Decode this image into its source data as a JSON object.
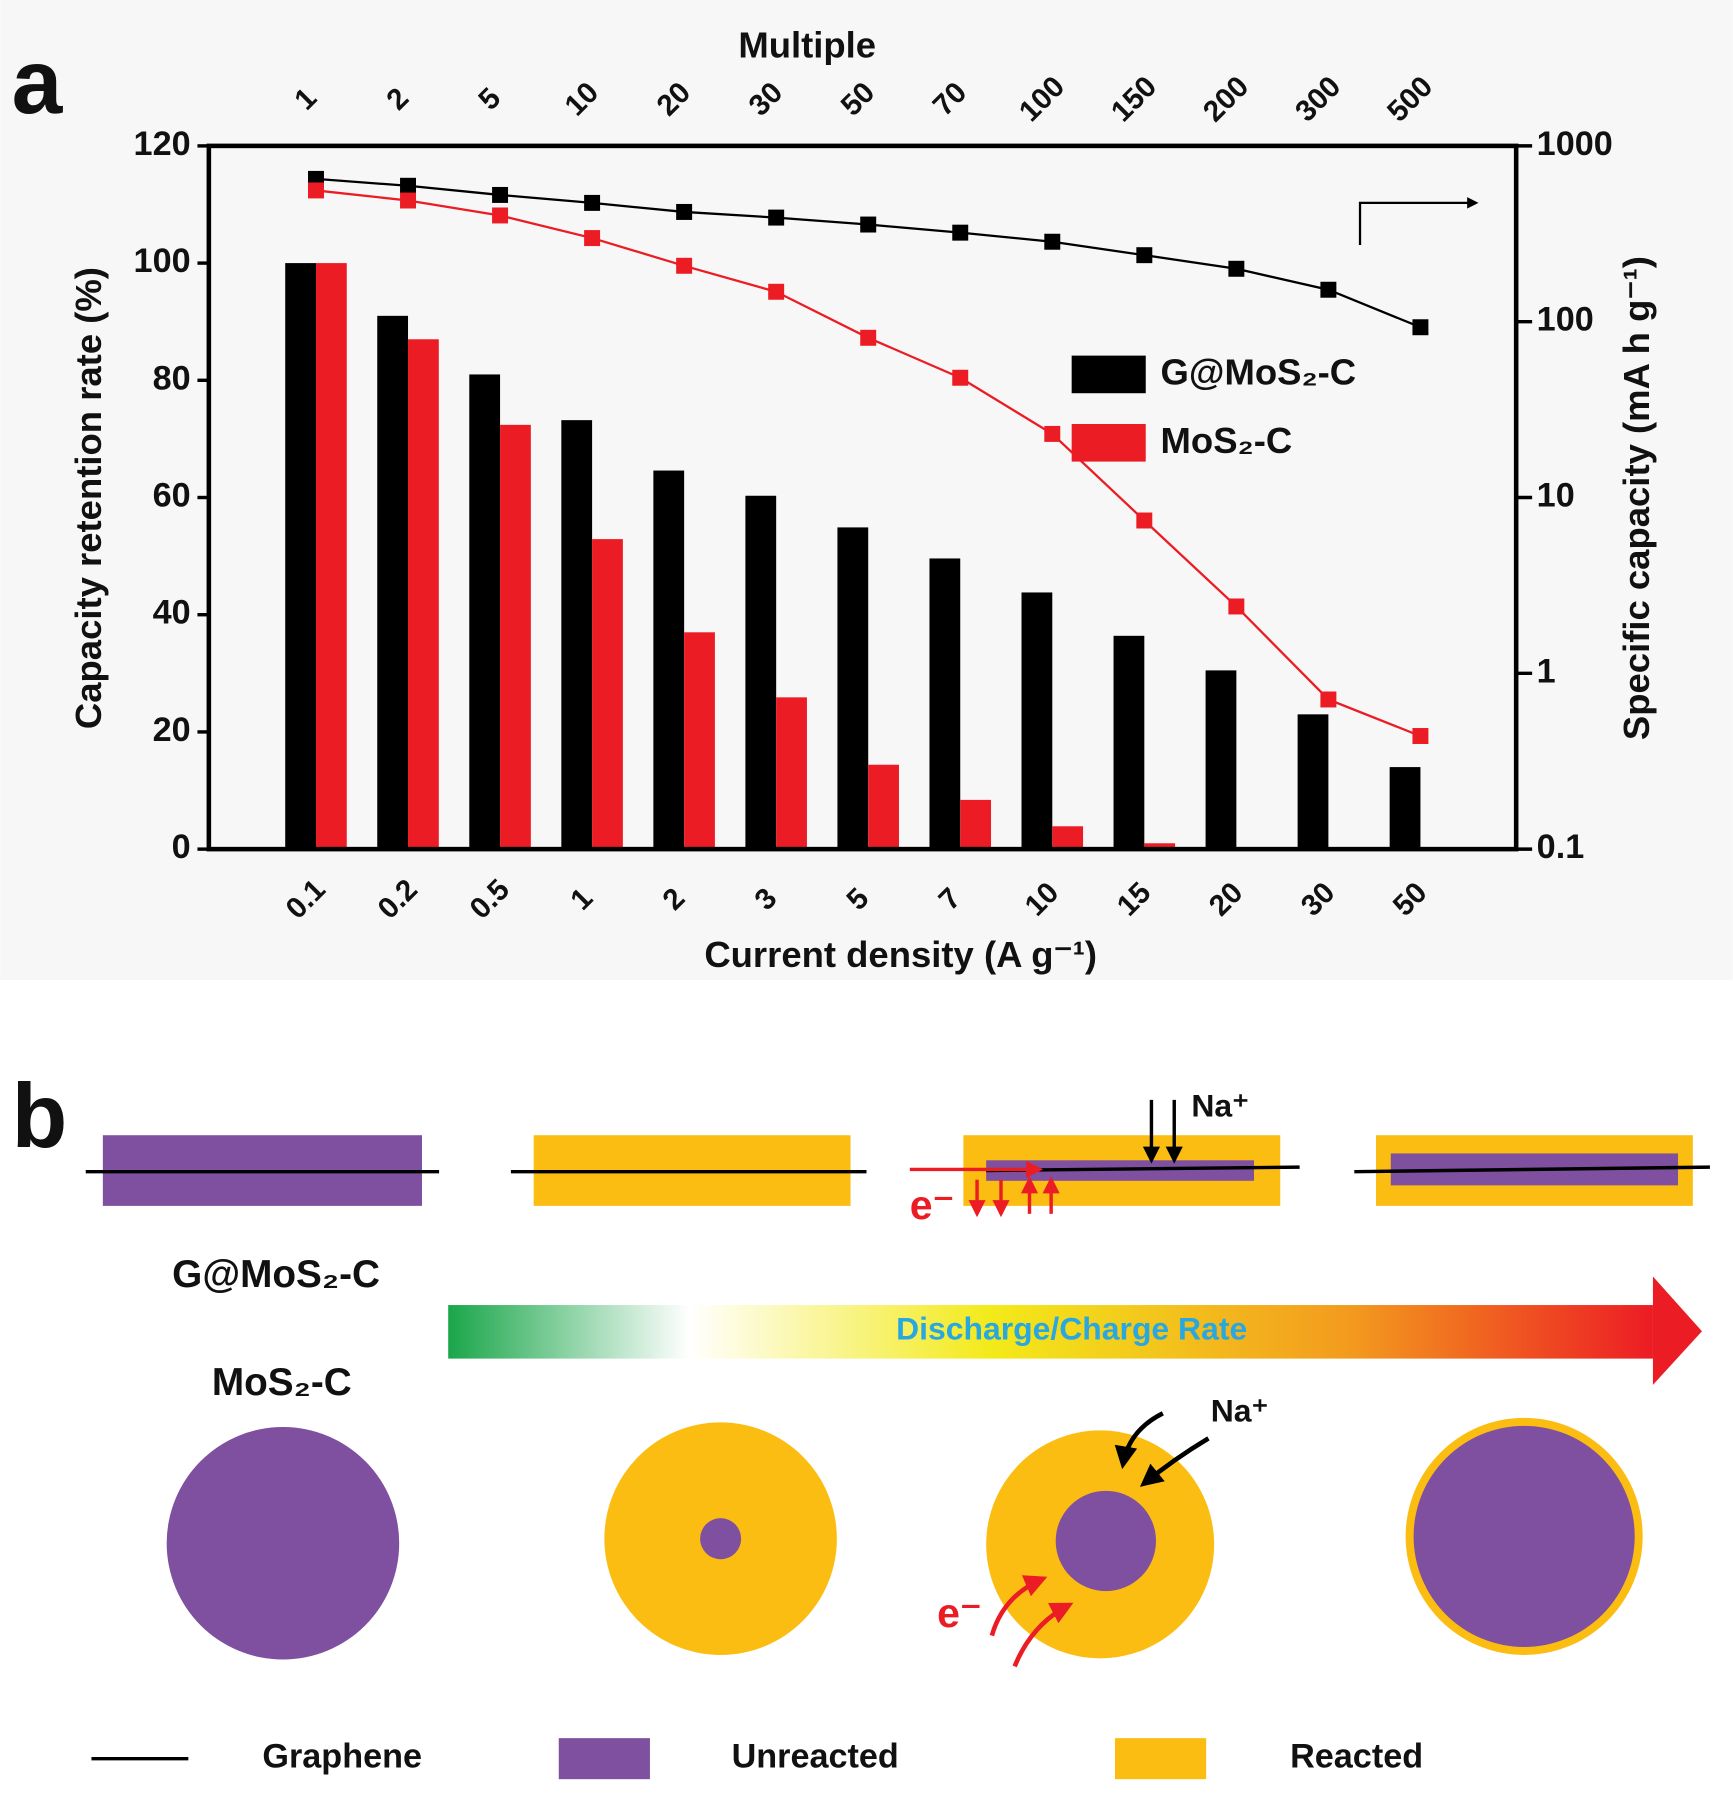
{
  "panel_labels": [
    "a",
    "b"
  ],
  "chart_data": {
    "type": "bar",
    "x2label": "Multiple",
    "xlabel": "Current density (A g⁻¹)",
    "ylabel": "Capacity retention rate (%)",
    "y2label": "Specific capacity (mA h g⁻¹)",
    "categories": [
      "0.1",
      "0.2",
      "0.5",
      "1",
      "2",
      "3",
      "5",
      "7",
      "10",
      "15",
      "20",
      "30",
      "50"
    ],
    "top_categories": [
      "1",
      "2",
      "5",
      "10",
      "20",
      "30",
      "50",
      "70",
      "100",
      "150",
      "200",
      "300",
      "500"
    ],
    "series": [
      {
        "name": "G@MoS₂-C",
        "type": "bar",
        "color": "#000000",
        "values": [
          100,
          91,
          81,
          73.2,
          64.6,
          60.3,
          54.9,
          49.6,
          43.8,
          36.4,
          30.5,
          23,
          14
        ]
      },
      {
        "name": "MoS₂-C",
        "type": "bar",
        "color": "#ec1c24",
        "values": [
          100,
          87,
          72.4,
          52.9,
          37,
          25.9,
          14.4,
          8.4,
          3.9,
          1,
          0,
          0,
          0
        ]
      },
      {
        "type": "line",
        "axis": "y2",
        "color": "#000000",
        "values": [
          649,
          593,
          526,
          474,
          421,
          391,
          357,
          321,
          285,
          239,
          200,
          152,
          93
        ]
      },
      {
        "type": "line",
        "axis": "y2",
        "color": "#ec1c24",
        "values": [
          558,
          489,
          402,
          299,
          208,
          148,
          81,
          48,
          23,
          7.4,
          2.4,
          0.71,
          0.44
        ]
      }
    ],
    "ylim": [
      0,
      120
    ],
    "yticks": [
      0,
      20,
      40,
      60,
      80,
      100,
      120
    ],
    "y2lim": [
      0.1,
      1000
    ],
    "y2ticks": [
      0.1,
      1,
      10,
      100,
      1000
    ],
    "y2scale": "log",
    "grid": false,
    "legend_position": "right"
  },
  "diagram": {
    "rows": [
      "G@MoS₂-C",
      "MoS₂-C"
    ],
    "arrow_label": "Discharge/Charge Rate",
    "ion_labels": [
      "Na⁺",
      "Na⁺"
    ],
    "electron_labels": [
      "e⁻",
      "e⁻"
    ],
    "legend": [
      "Graphene",
      "Unreacted",
      "Reacted"
    ]
  }
}
